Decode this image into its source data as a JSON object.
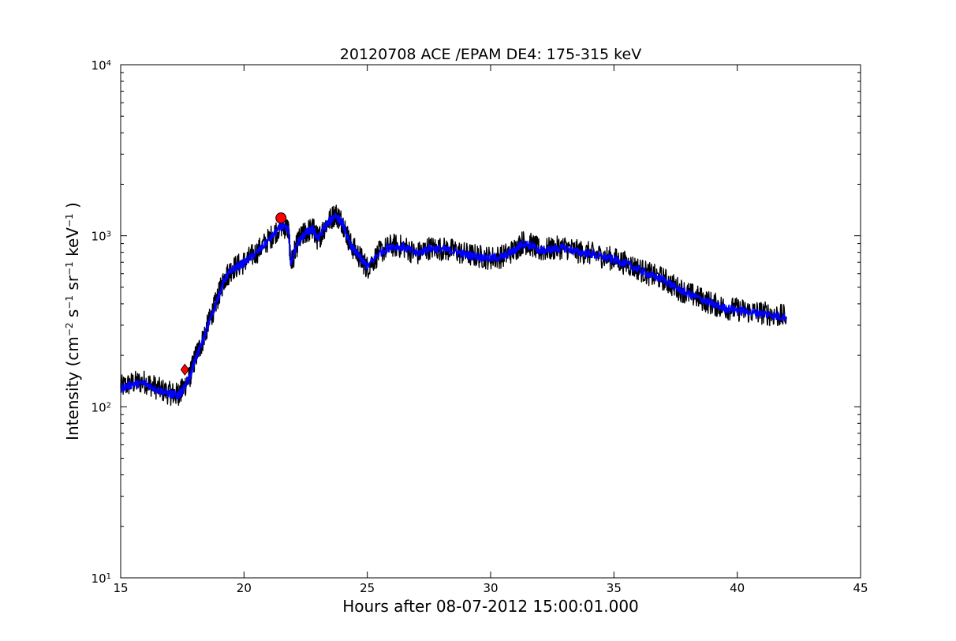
{
  "chart_data": {
    "type": "line",
    "title": "20120708 ACE /EPAM DE4: 175-315 keV",
    "xlabel": "Hours after 08-07-2012 15:00:01.000",
    "ylabel": {
      "text": "Intensity (cm",
      "parts": [
        {
          "t": "Intensity (cm",
          "sup": false
        },
        {
          "t": "−2",
          "sup": true
        },
        {
          "t": " s",
          "sup": false
        },
        {
          "t": "−1",
          "sup": true
        },
        {
          "t": " sr",
          "sup": false
        },
        {
          "t": "−1",
          "sup": true
        },
        {
          "t": " keV",
          "sup": false
        },
        {
          "t": "−1",
          "sup": true
        },
        {
          "t": " )",
          "sup": false
        }
      ]
    },
    "xlim": [
      15,
      45
    ],
    "ylim": [
      10,
      10000
    ],
    "yscale": "log",
    "x_ticks": [
      15,
      20,
      25,
      30,
      35,
      40,
      45
    ],
    "x_tick_labels": [
      "15",
      "20",
      "25",
      "30",
      "35",
      "40",
      "45"
    ],
    "y_ticks": [
      {
        "value": 10,
        "base": "10",
        "exp": "1"
      },
      {
        "value": 100,
        "base": "10",
        "exp": "2"
      },
      {
        "value": 1000,
        "base": "10",
        "exp": "3"
      },
      {
        "value": 10000,
        "base": "10",
        "exp": "4"
      }
    ],
    "grid": false,
    "legend": "none",
    "series": [
      {
        "role": "raw",
        "color": "#000000",
        "points": [
          [
            15.0,
            130
          ],
          [
            15.5,
            138
          ],
          [
            16.0,
            140
          ],
          [
            16.5,
            128
          ],
          [
            17.0,
            120
          ],
          [
            17.3,
            118
          ],
          [
            17.5,
            125
          ],
          [
            17.8,
            150
          ],
          [
            18.0,
            190
          ],
          [
            18.3,
            240
          ],
          [
            18.6,
            320
          ],
          [
            18.9,
            420
          ],
          [
            19.2,
            560
          ],
          [
            19.5,
            640
          ],
          [
            20.0,
            700
          ],
          [
            20.5,
            800
          ],
          [
            21.0,
            950
          ],
          [
            21.5,
            1150
          ],
          [
            21.8,
            1100
          ],
          [
            21.9,
            680
          ],
          [
            22.2,
            930
          ],
          [
            22.5,
            1050
          ],
          [
            22.8,
            1100
          ],
          [
            23.0,
            950
          ],
          [
            23.3,
            1150
          ],
          [
            23.7,
            1350
          ],
          [
            24.0,
            1200
          ],
          [
            24.3,
            900
          ],
          [
            24.7,
            750
          ],
          [
            25.0,
            650
          ],
          [
            25.5,
            800
          ],
          [
            26.0,
            880
          ],
          [
            26.5,
            860
          ],
          [
            27.0,
            780
          ],
          [
            27.5,
            850
          ],
          [
            28.0,
            840
          ],
          [
            28.5,
            820
          ],
          [
            29.0,
            780
          ],
          [
            29.5,
            760
          ],
          [
            30.0,
            740
          ],
          [
            30.5,
            760
          ],
          [
            31.0,
            830
          ],
          [
            31.3,
            920
          ],
          [
            31.7,
            880
          ],
          [
            32.0,
            820
          ],
          [
            32.5,
            840
          ],
          [
            33.0,
            860
          ],
          [
            33.5,
            810
          ],
          [
            34.0,
            790
          ],
          [
            34.5,
            760
          ],
          [
            35.0,
            730
          ],
          [
            35.5,
            690
          ],
          [
            36.0,
            640
          ],
          [
            36.5,
            590
          ],
          [
            37.0,
            560
          ],
          [
            37.5,
            500
          ],
          [
            38.0,
            460
          ],
          [
            38.5,
            430
          ],
          [
            39.0,
            400
          ],
          [
            39.5,
            380
          ],
          [
            40.0,
            370
          ],
          [
            40.5,
            360
          ],
          [
            41.0,
            355
          ],
          [
            41.5,
            345
          ],
          [
            42.0,
            335
          ]
        ]
      },
      {
        "role": "smoothed",
        "color": "#0000ff",
        "points": [
          [
            15.0,
            128
          ],
          [
            15.5,
            136
          ],
          [
            16.0,
            137
          ],
          [
            16.5,
            126
          ],
          [
            17.0,
            119
          ],
          [
            17.3,
            117
          ],
          [
            17.5,
            123
          ],
          [
            17.8,
            148
          ],
          [
            18.0,
            186
          ],
          [
            18.3,
            236
          ],
          [
            18.6,
            316
          ],
          [
            18.9,
            414
          ],
          [
            19.2,
            552
          ],
          [
            19.5,
            632
          ],
          [
            20.0,
            694
          ],
          [
            20.5,
            792
          ],
          [
            21.0,
            940
          ],
          [
            21.5,
            1130
          ],
          [
            21.8,
            1090
          ],
          [
            21.9,
            700
          ],
          [
            22.2,
            920
          ],
          [
            22.5,
            1040
          ],
          [
            22.8,
            1090
          ],
          [
            23.0,
            960
          ],
          [
            23.3,
            1140
          ],
          [
            23.7,
            1320
          ],
          [
            24.0,
            1180
          ],
          [
            24.3,
            890
          ],
          [
            24.7,
            745
          ],
          [
            25.0,
            660
          ],
          [
            25.5,
            795
          ],
          [
            26.0,
            870
          ],
          [
            26.5,
            855
          ],
          [
            27.0,
            785
          ],
          [
            27.5,
            845
          ],
          [
            28.0,
            835
          ],
          [
            28.5,
            815
          ],
          [
            29.0,
            775
          ],
          [
            29.5,
            755
          ],
          [
            30.0,
            738
          ],
          [
            30.5,
            755
          ],
          [
            31.0,
            825
          ],
          [
            31.3,
            905
          ],
          [
            31.7,
            870
          ],
          [
            32.0,
            815
          ],
          [
            32.5,
            835
          ],
          [
            33.0,
            850
          ],
          [
            33.5,
            805
          ],
          [
            34.0,
            785
          ],
          [
            34.5,
            755
          ],
          [
            35.0,
            725
          ],
          [
            35.5,
            685
          ],
          [
            36.0,
            635
          ],
          [
            36.5,
            585
          ],
          [
            37.0,
            555
          ],
          [
            37.5,
            498
          ],
          [
            38.0,
            458
          ],
          [
            38.5,
            428
          ],
          [
            39.0,
            398
          ],
          [
            39.5,
            378
          ],
          [
            40.0,
            368
          ],
          [
            40.5,
            358
          ],
          [
            41.0,
            352
          ],
          [
            41.5,
            342
          ],
          [
            42.0,
            332
          ]
        ]
      }
    ],
    "markers": [
      {
        "shape": "diamond",
        "x": 17.6,
        "y": 165,
        "color": "#ff0000"
      },
      {
        "shape": "circle",
        "x": 21.5,
        "y": 1270,
        "color": "#ff0000"
      }
    ]
  }
}
